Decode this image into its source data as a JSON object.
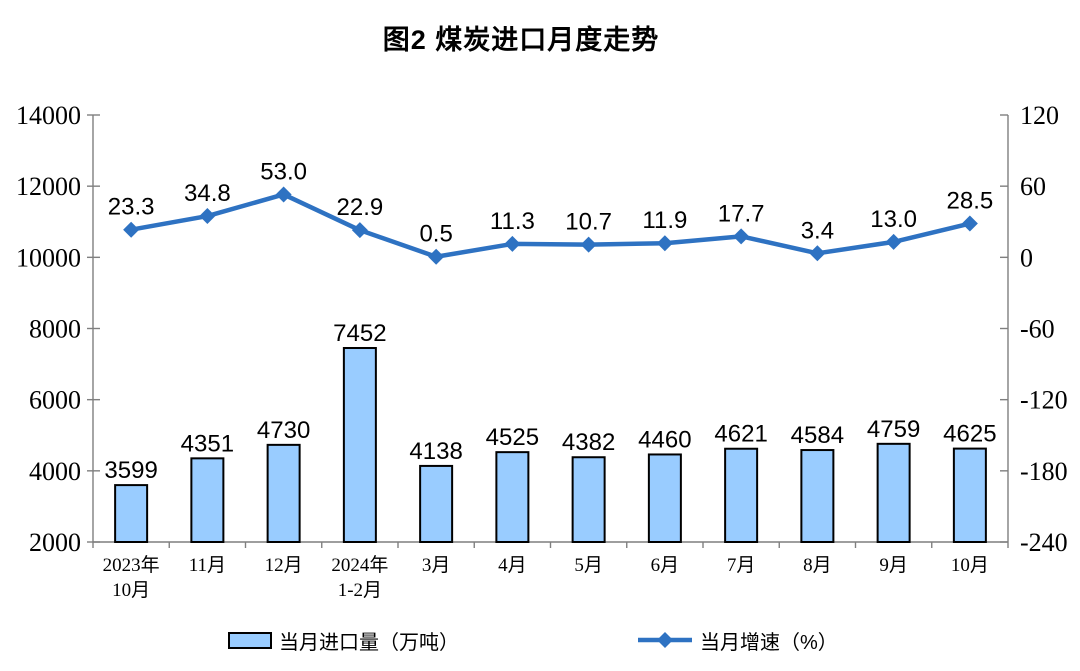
{
  "title": "图2 煤炭进口月度走势",
  "legend": {
    "bar_label": "当月进口量（万吨）",
    "line_label": "当月增速（%）"
  },
  "colors": {
    "bar_fill": "#99CCFF",
    "bar_border": "#000000",
    "line": "#2E72C2",
    "axis_line": "#7F7F7F",
    "text": "#000000"
  },
  "chart_data": {
    "type": "combo",
    "title": "图2 煤炭进口月度走势",
    "categories": [
      "2023年\n10月",
      "11月",
      "12月",
      "2024年\n1-2月",
      "3月",
      "4月",
      "5月",
      "6月",
      "7月",
      "8月",
      "9月",
      "10月"
    ],
    "series": [
      {
        "name": "当月进口量（万吨）",
        "chart_type": "bar",
        "y_axis": "left",
        "values": [
          3599,
          4351,
          4730,
          7452,
          4138,
          4525,
          4382,
          4460,
          4621,
          4584,
          4759,
          4625
        ]
      },
      {
        "name": "当月增速（%）",
        "chart_type": "line",
        "y_axis": "right",
        "marker": "diamond",
        "values": [
          23.3,
          34.8,
          53.0,
          22.9,
          0.5,
          11.3,
          10.7,
          11.9,
          17.7,
          3.4,
          13.0,
          28.5
        ]
      }
    ],
    "left_axis": {
      "min": 2000,
      "max": 14000,
      "step": 2000
    },
    "right_axis": {
      "min": -240,
      "max": 120,
      "step": 60
    },
    "grid": false,
    "data_labels": true,
    "legend_position": "bottom"
  }
}
